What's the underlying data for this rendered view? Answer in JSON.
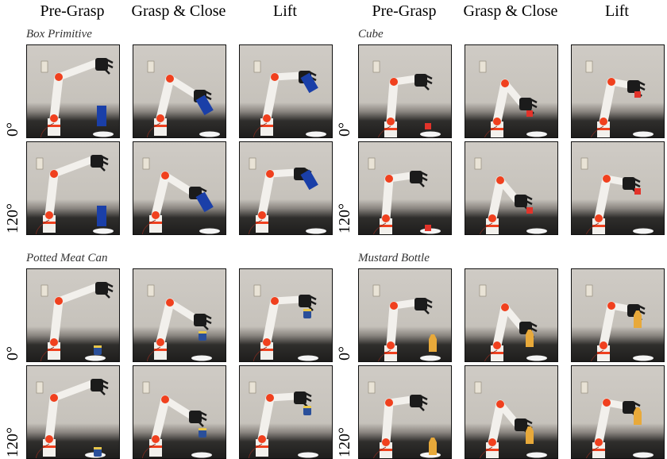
{
  "column_headers": [
    "Pre-Grasp",
    "Grasp & Close",
    "Lift"
  ],
  "row_labels": [
    "0°",
    "120°"
  ],
  "panels": [
    {
      "title": "Box Primitive",
      "object": "box",
      "object_color": "#1a3fa8"
    },
    {
      "title": "Cube",
      "object": "cube",
      "object_color": "#e2332a"
    },
    {
      "title": "Potted Meat Can",
      "object": "can",
      "object_color": "#2a4f9a"
    },
    {
      "title": "Mustard Bottle",
      "object": "bottle",
      "object_color": "#e8a93a"
    }
  ],
  "colors": {
    "robot_body": "#f2f0ec",
    "robot_accent": "#f0401e",
    "hand": "#1b1b1b",
    "wall": "#cdc9c2",
    "floor": "#222120"
  }
}
